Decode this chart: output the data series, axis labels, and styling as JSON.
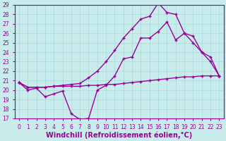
{
  "xlabel": "Windchill (Refroidissement éolien,°C)",
  "xlim": [
    -0.5,
    23.5
  ],
  "ylim": [
    17,
    29
  ],
  "xticks": [
    0,
    1,
    2,
    3,
    4,
    5,
    6,
    7,
    8,
    9,
    10,
    11,
    12,
    13,
    14,
    15,
    16,
    17,
    18,
    19,
    20,
    21,
    22,
    23
  ],
  "yticks": [
    17,
    18,
    19,
    20,
    21,
    22,
    23,
    24,
    25,
    26,
    27,
    28,
    29
  ],
  "bg_color": "#c8ecec",
  "grid_color": "#a8d8d8",
  "line_color": "#990099",
  "line1_x": [
    0,
    1,
    2,
    3,
    4,
    5,
    6,
    7,
    8,
    9,
    10,
    11,
    12,
    13,
    14,
    15,
    16,
    17,
    18,
    19,
    20,
    21,
    22,
    23
  ],
  "line1_y": [
    20.8,
    20.0,
    20.2,
    19.3,
    19.6,
    19.9,
    17.5,
    16.9,
    17.0,
    20.0,
    20.5,
    21.5,
    23.3,
    23.5,
    25.5,
    25.5,
    26.2,
    27.2,
    25.3,
    26.0,
    25.0,
    24.0,
    23.0,
    21.5
  ],
  "line2_x": [
    0,
    1,
    2,
    3,
    4,
    5,
    6,
    7,
    8,
    9,
    10,
    11,
    12,
    13,
    14,
    15,
    16,
    17,
    18,
    19,
    20,
    21,
    22,
    23
  ],
  "line2_y": [
    20.8,
    20.3,
    20.3,
    20.3,
    20.4,
    20.4,
    20.4,
    20.4,
    20.5,
    20.5,
    20.6,
    20.6,
    20.7,
    20.8,
    20.9,
    21.0,
    21.1,
    21.2,
    21.3,
    21.4,
    21.4,
    21.5,
    21.5,
    21.5
  ],
  "line3_x": [
    0,
    1,
    2,
    3,
    4,
    5,
    6,
    7,
    8,
    9,
    10,
    11,
    12,
    13,
    14,
    15,
    16,
    17,
    18,
    19,
    20,
    21,
    22,
    23
  ],
  "line3_y": [
    20.8,
    20.3,
    20.3,
    20.3,
    20.4,
    20.5,
    20.6,
    20.7,
    21.3,
    22.0,
    23.0,
    24.2,
    25.5,
    26.5,
    27.5,
    27.8,
    29.2,
    28.2,
    28.0,
    26.0,
    25.7,
    24.0,
    23.5,
    21.5
  ],
  "tick_fontsize": 5.5,
  "xlabel_fontsize": 7.0,
  "line_width": 1.0,
  "marker_size": 2.5
}
